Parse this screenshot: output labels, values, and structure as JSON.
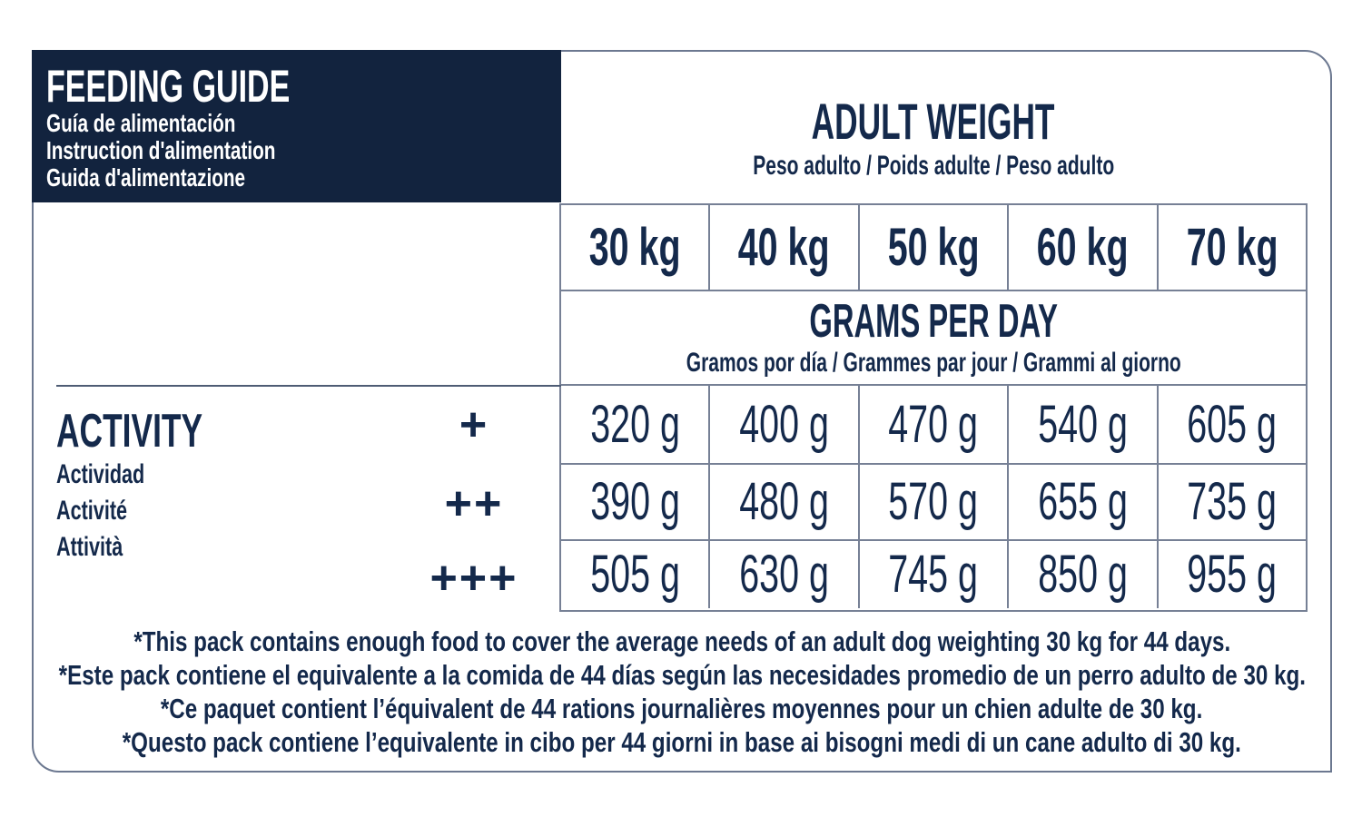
{
  "feeding_guide": {
    "title": "FEEDING GUIDE",
    "subtitles": [
      "Guía de alimentación",
      "Instruction d'alimentation",
      "Guida d'alimentazione"
    ]
  },
  "adult_weight": {
    "title": "ADULT WEIGHT",
    "subtitle": "Peso adulto / Poids adulte / Peso adulto"
  },
  "grams_per_day": {
    "title": "GRAMS PER DAY",
    "subtitle": "Gramos por día / Grammes par jour / Grammi al giorno"
  },
  "activity": {
    "title": "ACTIVITY",
    "subtitles": [
      "Actividad",
      "Activité",
      "Attività"
    ]
  },
  "table": {
    "weights": [
      "30 kg",
      "40 kg",
      "50 kg",
      "60 kg",
      "70 kg"
    ],
    "rows": [
      {
        "activity_level": "+",
        "values": [
          "320 g",
          "400 g",
          "470 g",
          "540 g",
          "605 g"
        ]
      },
      {
        "activity_level": "++",
        "values": [
          "390 g",
          "480 g",
          "570 g",
          "655 g",
          "735 g"
        ]
      },
      {
        "activity_level": "+++",
        "values": [
          "505 g",
          "630 g",
          "745 g",
          "850 g",
          "955 g"
        ]
      }
    ]
  },
  "chart_data": {
    "type": "table",
    "title": "Feeding guide — grams per day by adult weight and activity level",
    "columns_adult_weight_kg": [
      30,
      40,
      50,
      60,
      70
    ],
    "rows": [
      {
        "activity": "+",
        "grams_per_day": [
          320,
          400,
          470,
          540,
          605
        ]
      },
      {
        "activity": "++",
        "grams_per_day": [
          390,
          480,
          570,
          655,
          735
        ]
      },
      {
        "activity": "+++",
        "grams_per_day": [
          505,
          630,
          745,
          850,
          955
        ]
      }
    ]
  },
  "footnotes": [
    "*This pack contains enough food to cover the average needs of an adult dog weighting 30 kg for 44 days.",
    "*Este pack contiene el equivalente a la comida de 44 días según las necesidades promedio de un perro adulto de 30 kg.",
    "*Ce paquet contient l’équivalent de 44 rations journalières moyennes pour un chien adulte de 30 kg.",
    "*Questo pack contiene l’equivalente in cibo per 44 giorni in base ai bisogni medi di un cane adulto di 30 kg."
  ],
  "colors": {
    "navy_header_bg": "#12233E",
    "text_navy": "#14294B",
    "grid_line": "#768095",
    "outer_border": "#6C7890"
  }
}
